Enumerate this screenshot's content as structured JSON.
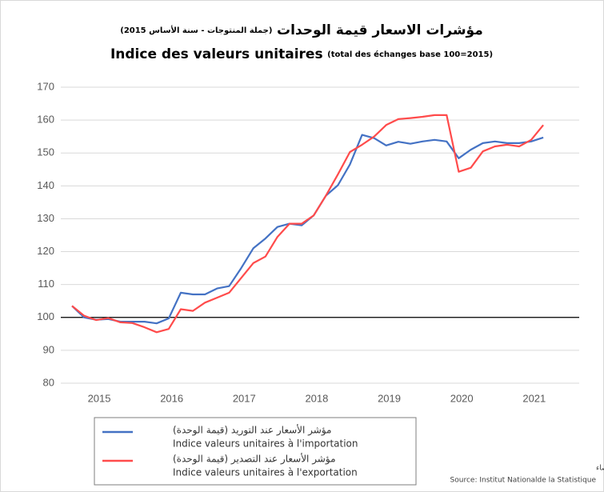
{
  "chart_data": {
    "type": "line",
    "title_ar": "مؤشرات الاسعار قيمة الوحدات",
    "title_ar_note": "(جملة المنتوجات - سنة الأساس 2015)",
    "title": "Indice des valeurs unitaires",
    "title_note": "(total des échanges base 100=2015)",
    "x": [
      2014.625,
      2014.792,
      2014.958,
      2015.125,
      2015.292,
      2015.458,
      2015.625,
      2015.792,
      2015.958,
      2016.125,
      2016.292,
      2016.458,
      2016.625,
      2016.792,
      2016.958,
      2017.125,
      2017.292,
      2017.458,
      2017.625,
      2017.792,
      2017.958,
      2018.125,
      2018.292,
      2018.458,
      2018.625,
      2018.792,
      2018.958,
      2019.125,
      2019.292,
      2019.458,
      2019.625,
      2019.792,
      2019.958,
      2020.125,
      2020.292,
      2020.458,
      2020.625,
      2020.792,
      2020.958,
      2021.125
    ],
    "series": [
      {
        "name": "Indice valeurs unitaires à l'importation",
        "name_ar": "مؤشر الأسعار عند التوريد (قيمة الوحدة)",
        "color": "#4472c4",
        "values": [
          103.5,
          100,
          99.3,
          99.5,
          98.7,
          98.7,
          98.7,
          98.2,
          99.7,
          107.5,
          107,
          107,
          108.8,
          109.5,
          115,
          121,
          124,
          127.5,
          128.5,
          128,
          131,
          137,
          140.2,
          146.5,
          155.5,
          154.5,
          152.3,
          153.4,
          152.8,
          153.5,
          154,
          153.5,
          148.4,
          151,
          153,
          153.5,
          153,
          153,
          153.5,
          154.7
        ]
      },
      {
        "name": "Indice valeurs unitaires à l'exportation",
        "name_ar": "مؤشر الأسعار عند التصدير (قيمة الوحدة)",
        "color": "#ff4b4b",
        "values": [
          103.5,
          100.5,
          99.2,
          99.8,
          98.5,
          98.3,
          97,
          95.5,
          96.5,
          102.5,
          102,
          104.5,
          106,
          107.5,
          112,
          116.5,
          118.5,
          124.5,
          128.5,
          128.5,
          131,
          137,
          143.5,
          150.3,
          152.5,
          155,
          158.5,
          160.3,
          160.6,
          161,
          161.5,
          161.5,
          144.3,
          145.5,
          150.5,
          152,
          152.5,
          152,
          154,
          158.5
        ]
      }
    ],
    "xlim": [
      2014.47,
      2021.62
    ],
    "xticks": [
      2015,
      2016,
      2017,
      2018,
      2019,
      2020,
      2021
    ],
    "ylim": [
      80,
      170
    ],
    "yticks": [
      80,
      90,
      100,
      110,
      120,
      130,
      140,
      150,
      160,
      170
    ],
    "baseline": 100,
    "grid": true,
    "source_ar": "المصدر : المعهد الوطني للاحصاء",
    "source": "Source: Institut Nationalde la Statistique"
  }
}
